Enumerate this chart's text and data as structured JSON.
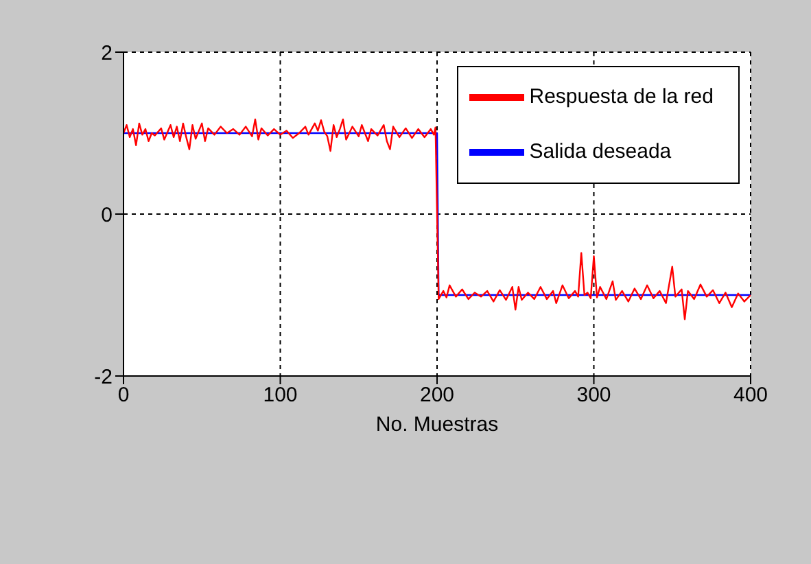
{
  "chart_data": {
    "type": "line",
    "xlabel": "No. Muestras",
    "xlim": [
      0,
      400
    ],
    "xticks": [
      0,
      100,
      200,
      300,
      400
    ],
    "ylim": [
      -2,
      2
    ],
    "yticks": [
      -2,
      0,
      2
    ],
    "grid": true,
    "legend": "top right",
    "marker": "none",
    "line_style": "solid",
    "series": [
      {
        "name": "Salida deseada",
        "color": "#0000ff",
        "x": [
          0,
          200,
          201,
          400
        ],
        "values": [
          1,
          1,
          -1,
          -1
        ]
      },
      {
        "name": "Respuesta de la red",
        "color": "#ff0000",
        "x": [
          0,
          2,
          4,
          6,
          8,
          10,
          12,
          14,
          16,
          18,
          20,
          24,
          26,
          30,
          32,
          34,
          36,
          38,
          40,
          42,
          44,
          46,
          50,
          52,
          54,
          58,
          62,
          66,
          70,
          74,
          78,
          82,
          84,
          86,
          88,
          92,
          96,
          100,
          104,
          108,
          112,
          116,
          118,
          122,
          124,
          126,
          128,
          130,
          132,
          134,
          136,
          138,
          140,
          142,
          146,
          150,
          152,
          156,
          158,
          162,
          166,
          168,
          170,
          172,
          176,
          180,
          184,
          188,
          192,
          196,
          198,
          199,
          201,
          204,
          206,
          208,
          212,
          216,
          220,
          224,
          228,
          232,
          236,
          240,
          244,
          248,
          250,
          252,
          254,
          258,
          262,
          266,
          270,
          274,
          276,
          280,
          284,
          288,
          290,
          292,
          294,
          296,
          298,
          300,
          302,
          304,
          308,
          312,
          314,
          318,
          322,
          326,
          330,
          334,
          338,
          342,
          346,
          350,
          352,
          356,
          358,
          360,
          364,
          368,
          372,
          376,
          380,
          384,
          388,
          392,
          396,
          400
        ],
        "values": [
          1.0,
          1.1,
          0.95,
          1.05,
          0.85,
          1.12,
          0.98,
          1.05,
          0.9,
          1.0,
          0.97,
          1.06,
          0.92,
          1.1,
          0.95,
          1.08,
          0.9,
          1.12,
          0.95,
          0.8,
          1.1,
          0.93,
          1.12,
          0.9,
          1.06,
          0.98,
          1.08,
          1.0,
          1.05,
          0.98,
          1.08,
          0.96,
          1.17,
          0.92,
          1.06,
          0.97,
          1.05,
          0.98,
          1.03,
          0.94,
          1.0,
          1.08,
          0.98,
          1.12,
          1.03,
          1.16,
          1.02,
          0.96,
          0.78,
          1.1,
          0.95,
          1.05,
          1.17,
          0.92,
          1.08,
          0.96,
          1.1,
          0.9,
          1.05,
          0.97,
          1.1,
          0.9,
          0.8,
          1.08,
          0.95,
          1.06,
          0.94,
          1.05,
          0.95,
          1.05,
          0.98,
          1.07,
          -1.05,
          -0.95,
          -1.03,
          -0.88,
          -1.02,
          -0.93,
          -1.05,
          -0.97,
          -1.02,
          -0.95,
          -1.08,
          -0.94,
          -1.06,
          -0.9,
          -1.18,
          -0.9,
          -1.06,
          -0.97,
          -1.05,
          -0.9,
          -1.05,
          -0.95,
          -1.1,
          -0.88,
          -1.04,
          -0.95,
          -1.02,
          -0.48,
          -1.0,
          -0.97,
          -1.04,
          -0.52,
          -1.03,
          -0.9,
          -1.05,
          -0.83,
          -1.06,
          -0.95,
          -1.08,
          -0.92,
          -1.05,
          -0.88,
          -1.04,
          -0.95,
          -1.1,
          -0.65,
          -1.02,
          -0.93,
          -1.3,
          -0.95,
          -1.05,
          -0.87,
          -1.02,
          -0.94,
          -1.1,
          -0.97,
          -1.15,
          -0.98,
          -1.08,
          -1.0
        ]
      }
    ]
  }
}
